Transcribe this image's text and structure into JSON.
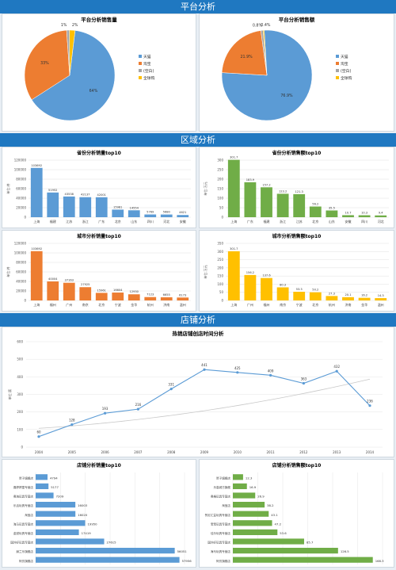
{
  "sections": {
    "platform": "平台分析",
    "region": "区域分析",
    "shop": "店铺分析"
  },
  "chart_data": [
    {
      "id": "pie-qty",
      "type": "pie",
      "title": "平台分析销售量",
      "categories": [
        "天猫",
        "淘宝",
        "(空白)",
        "全球购"
      ],
      "values": [
        64,
        33,
        1,
        2
      ],
      "labels": [
        "64%",
        "33%",
        "1%",
        "2%"
      ],
      "colors": [
        "#5b9bd5",
        "#ed7d31",
        "#a5a5a5",
        "#ffc000"
      ]
    },
    {
      "id": "pie-amt",
      "type": "pie",
      "title": "平台分析销售额",
      "categories": [
        "天猫",
        "淘宝",
        "(空白)",
        "全球购"
      ],
      "values": [
        76.9,
        21.9,
        0.8,
        0.4
      ],
      "labels": [
        "76.9%",
        "21.9%",
        "0.8%",
        "0.4%"
      ],
      "colors": [
        "#5b9bd5",
        "#ed7d31",
        "#a5a5a5",
        "#ffc000"
      ]
    },
    {
      "id": "prov-qty",
      "type": "bar",
      "title": "省份分析销量top10",
      "ylabel": "单位:件",
      "color": "#5b9bd5",
      "ylim": [
        0,
        120000
      ],
      "yticks": [
        0,
        20000,
        40000,
        60000,
        80000,
        100000,
        120000
      ],
      "categories": [
        "上海",
        "福建",
        "江苏",
        "浙江",
        "广东",
        "北京",
        "山东",
        "四川",
        "河北",
        "安徽"
      ],
      "values": [
        103692,
        51952,
        43538,
        42137,
        42001,
        15981,
        14554,
        5769,
        5680,
        4621
      ]
    },
    {
      "id": "prov-amt",
      "type": "bar",
      "title": "省份分析销售额top10",
      "ylabel": "单位:万元",
      "color": "#70ad47",
      "ylim": [
        0,
        300
      ],
      "yticks": [
        0,
        50,
        100,
        150,
        200,
        250,
        300
      ],
      "categories": [
        "上海",
        "广东",
        "福建",
        "浙江",
        "江苏",
        "北京",
        "山东",
        "安徽",
        "四川",
        "河北"
      ],
      "values": [
        301.7,
        183.9,
        157.2,
        123.2,
        121.3,
        56.2,
        35.5,
        10.7,
        10.3,
        9.4
      ]
    },
    {
      "id": "city-qty",
      "type": "bar",
      "title": "城市分析销量top10",
      "ylabel": "单位:件",
      "color": "#ed7d31",
      "ylim": [
        0,
        120000
      ],
      "yticks": [
        0,
        20000,
        40000,
        60000,
        80000,
        100000,
        120000
      ],
      "categories": [
        "上海",
        "福州",
        "广州",
        "南京",
        "北京",
        "宁波",
        "金华",
        "杭州",
        "济南",
        "温州"
      ],
      "values": [
        103692,
        40004,
        37163,
        27925,
        15961,
        16604,
        12930,
        7123,
        6655,
        6173
      ]
    },
    {
      "id": "city-amt",
      "type": "bar",
      "title": "城市分析销售额top10",
      "ylabel": "单位:万元",
      "color": "#ffc000",
      "ylim": [
        0,
        350
      ],
      "yticks": [
        0,
        50,
        100,
        150,
        200,
        250,
        300,
        350
      ],
      "categories": [
        "上海",
        "广州",
        "福州",
        "南京",
        "宁波",
        "北京",
        "杭州",
        "济南",
        "金华",
        "温州"
      ],
      "values": [
        301.7,
        156.2,
        137.6,
        80.3,
        53.3,
        50.2,
        27.3,
        20.1,
        16.2,
        14.3
      ]
    },
    {
      "id": "shop-time",
      "type": "line",
      "title": "热销店铺创店时间分析",
      "ylabel": "单位:家",
      "color": "#5b9bd5",
      "ylim": [
        0,
        600
      ],
      "yticks": [
        0,
        100,
        200,
        300,
        400,
        500,
        600
      ],
      "x": [
        "2004",
        "2005",
        "2006",
        "2007",
        "2008",
        "2009",
        "2010",
        "2011",
        "2012",
        "2013",
        "2014"
      ],
      "values": [
        60,
        128,
        193,
        216,
        331,
        441,
        425,
        409,
        363,
        432,
        236
      ]
    },
    {
      "id": "shop-qty",
      "type": "hbar",
      "title": "店铺分析销量top10",
      "color": "#5b9bd5",
      "xmax": 60000,
      "categories": [
        "赞子旗舰店",
        "喜婷婷童专营店",
        "奥海玩具专营店",
        "乐活玩具专营店",
        "淘宝店",
        "海马玩具专营店",
        "金锐玩具专营店",
        "国外好玩具专营店",
        "赫兰乐旗舰店",
        "阿仿旗舰店"
      ],
      "values": [
        4794,
        5177,
        7209,
        16003,
        16020,
        19950,
        17419,
        27615,
        56051,
        57956
      ]
    },
    {
      "id": "shop-amt",
      "type": "hbar",
      "title": "店铺分析销售额top10",
      "color": "#70ad47",
      "xmax": 180,
      "categories": [
        "赞子旗舰店",
        "乐高城方旗舰",
        "奥格玩具专营店",
        "淘宝店",
        "赞尼汇益玩具专营店",
        "宝宝玩具专营店",
        "佳乐玩具专营店",
        "国外好玩具专营店",
        "海马玩具专营店",
        "阿仿旗舰店"
      ],
      "values": [
        12.3,
        16.9,
        26.9,
        38.2,
        43.1,
        47.2,
        53.6,
        85.7,
        126.5,
        168.3
      ]
    }
  ]
}
